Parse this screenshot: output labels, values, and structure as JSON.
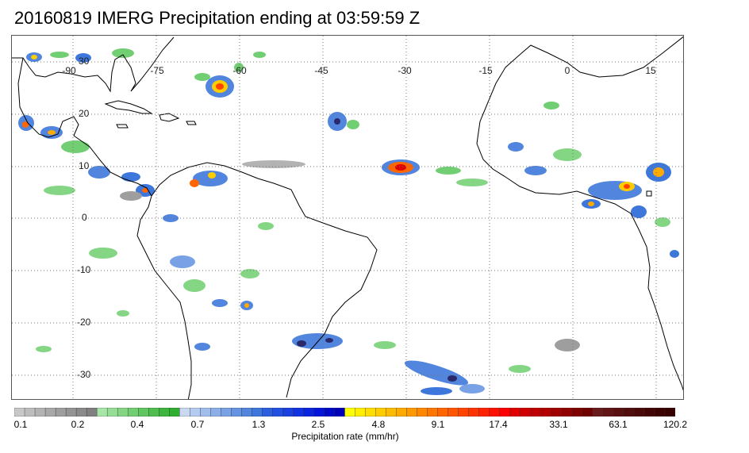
{
  "title": "20160819 IMERG Precipitation ending at 03:59:59 Z",
  "map": {
    "longitude_labels": [
      "-90",
      "-75",
      "-60",
      "-45",
      "-30",
      "-15",
      "0",
      "15"
    ],
    "latitude_labels": [
      "30",
      "20",
      "10",
      "0",
      "-10",
      "-20",
      "-30"
    ],
    "gridline_style": "dotted",
    "region": "Tropical Atlantic, Americas and West Africa"
  },
  "colorbar": {
    "title": "Precipitation rate (mm/hr)",
    "tick_labels": [
      "0.1",
      "0.2",
      "0.4",
      "0.7",
      "1.3",
      "2.5",
      "4.8",
      "9.1",
      "17.4",
      "33.1",
      "63.1",
      "120.2"
    ],
    "colors": [
      "#c8c8c8",
      "#bdbdbd",
      "#b3b3b3",
      "#a8a8a8",
      "#9e9e9e",
      "#949494",
      "#8a8a8a",
      "#808080",
      "#a8e6a8",
      "#96de96",
      "#84d684",
      "#72ce72",
      "#60c660",
      "#4fbe4f",
      "#3db63d",
      "#2fae2f",
      "#c9d9f2",
      "#b5cbef",
      "#a1bdec",
      "#8dafe8",
      "#79a1e5",
      "#6593e2",
      "#5185de",
      "#3d77db",
      "#2a5fe0",
      "#2250e0",
      "#1a41e0",
      "#1232e0",
      "#0a23e0",
      "#0414d8",
      "#0008c8",
      "#0000b8",
      "#ffff00",
      "#ffee00",
      "#ffdd00",
      "#ffcc00",
      "#ffbb00",
      "#ffaa00",
      "#ff9900",
      "#ff8800",
      "#ff7700",
      "#ff6600",
      "#ff5500",
      "#ff4400",
      "#ff3300",
      "#ff2200",
      "#ff1100",
      "#ff0000",
      "#e00000",
      "#d00000",
      "#c00000",
      "#b00000",
      "#a00000",
      "#900000",
      "#800000",
      "#700000",
      "#6a1a1a",
      "#621414",
      "#5a1010",
      "#520c0c",
      "#4a0808",
      "#420404",
      "#3c0202",
      "#360000"
    ]
  }
}
